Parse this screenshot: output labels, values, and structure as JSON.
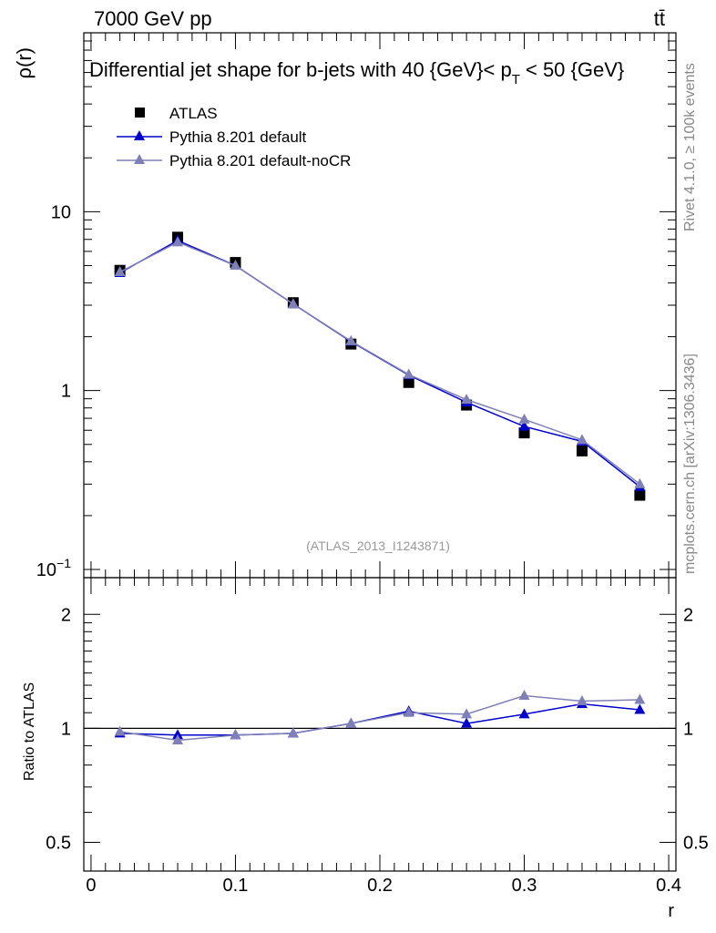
{
  "header": {
    "energy_label": "7000 GeV pp",
    "process_label": "tt̄"
  },
  "side_labels": {
    "rivet": "Rivet 4.1.0, ≥ 100k events",
    "mcplots": "mcplots.cern.ch [arXiv:1306.3436]"
  },
  "chart_data": [
    {
      "type": "scatter",
      "panel": "main",
      "title": "Differential jet shape for b-jets with 40 {GeV}< p_T < 50 {GeV}",
      "title_parts": {
        "prefix": "Differential jet shape for b-jets with 40 {GeV}< p",
        "sub": "T",
        "suffix": " < 50 {GeV}"
      },
      "ylabel": "ρ(r)",
      "yscale": "log",
      "ylim": [
        0.09,
        100
      ],
      "xlim": [
        -0.005,
        0.405
      ],
      "yticks": [
        {
          "v": 0.1,
          "base": "10",
          "exp": "−1"
        },
        {
          "v": 1,
          "base": "1"
        },
        {
          "v": 10,
          "base": "10"
        }
      ],
      "annotation": "(ATLAS_2013_I1243871)",
      "legend_position": "top-left",
      "series": [
        {
          "name": "ATLAS",
          "marker": "square",
          "color": "#000000",
          "x": [
            0.02,
            0.06,
            0.1,
            0.14,
            0.18,
            0.22,
            0.26,
            0.3,
            0.34,
            0.38
          ],
          "y": [
            4.7,
            7.2,
            5.2,
            3.1,
            1.82,
            1.11,
            0.83,
            0.58,
            0.46,
            0.26
          ]
        },
        {
          "name": "Pythia 8.201 default",
          "marker": "triangle",
          "color": "#0000cc",
          "x": [
            0.02,
            0.06,
            0.1,
            0.14,
            0.18,
            0.22,
            0.26,
            0.3,
            0.34,
            0.38
          ],
          "y": [
            4.55,
            6.9,
            5.0,
            3.05,
            1.88,
            1.22,
            0.86,
            0.63,
            0.52,
            0.29
          ]
        },
        {
          "name": "Pythia 8.201 default-noCR",
          "marker": "triangle",
          "color": "#8080b8",
          "x": [
            0.02,
            0.06,
            0.1,
            0.14,
            0.18,
            0.22,
            0.26,
            0.3,
            0.34,
            0.38
          ],
          "y": [
            4.6,
            6.75,
            5.0,
            3.05,
            1.89,
            1.23,
            0.89,
            0.69,
            0.53,
            0.3
          ]
        }
      ]
    },
    {
      "type": "line",
      "panel": "ratio",
      "ylabel": "Ratio to ATLAS",
      "xlabel": "r",
      "yscale": "log",
      "ylim": [
        0.42,
        2.5
      ],
      "xlim": [
        -0.005,
        0.405
      ],
      "yticks": [
        {
          "v": 0.5,
          "label": "0.5"
        },
        {
          "v": 1,
          "label": "1"
        },
        {
          "v": 2,
          "label": "2"
        }
      ],
      "xticks": [
        {
          "v": 0,
          "label": "0"
        },
        {
          "v": 0.1,
          "label": "0.1"
        },
        {
          "v": 0.2,
          "label": "0.2"
        },
        {
          "v": 0.3,
          "label": "0.3"
        },
        {
          "v": 0.4,
          "label": "0.4"
        }
      ],
      "reference": 1,
      "series": [
        {
          "name": "Pythia 8.201 default",
          "marker": "triangle",
          "color": "#0000cc",
          "x": [
            0.02,
            0.06,
            0.1,
            0.14,
            0.18,
            0.22,
            0.26,
            0.3,
            0.34,
            0.38
          ],
          "y": [
            0.97,
            0.96,
            0.96,
            0.97,
            1.03,
            1.11,
            1.03,
            1.09,
            1.16,
            1.12
          ]
        },
        {
          "name": "Pythia 8.201 default-noCR",
          "marker": "triangle",
          "color": "#8080b8",
          "x": [
            0.02,
            0.06,
            0.1,
            0.14,
            0.18,
            0.22,
            0.26,
            0.3,
            0.34,
            0.38
          ],
          "y": [
            0.98,
            0.93,
            0.96,
            0.97,
            1.03,
            1.1,
            1.09,
            1.22,
            1.18,
            1.19
          ]
        }
      ]
    }
  ]
}
